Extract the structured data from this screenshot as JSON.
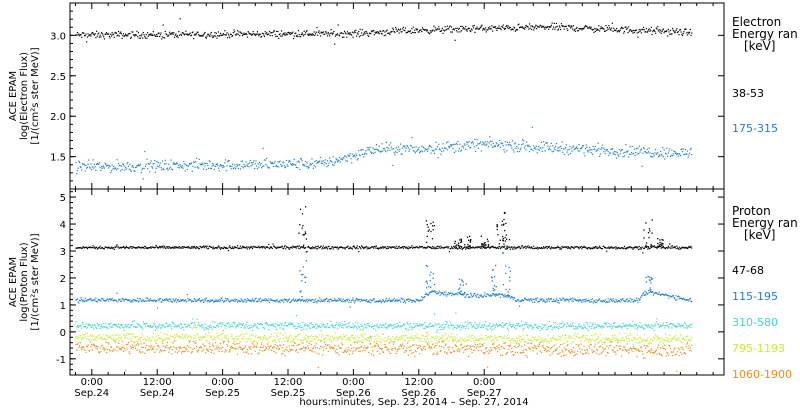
{
  "chart_data": [
    {
      "type": "scatter",
      "ylabel_lines": [
        "ACE EPAM",
        "log(Electron Flux)",
        "[1/(cm²s ster MeV)]"
      ],
      "ylim": [
        1.1,
        3.4
      ],
      "yticks": [
        "1.5",
        "2.0",
        "2.5",
        "3.0"
      ],
      "ytick_values": [
        1.5,
        2.0,
        2.5,
        3.0
      ],
      "legend_title": [
        "Electron",
        "Energy ran",
        "[keV]"
      ],
      "series": [
        {
          "name": "38-53",
          "color": "#000000",
          "levels": [
            [
              0,
              3.01
            ],
            [
              24,
              3.02
            ],
            [
              48,
              3.03
            ],
            [
              60,
              3.07
            ],
            [
              72,
              3.09
            ],
            [
              84,
              3.11
            ],
            [
              96,
              3.08
            ],
            [
              110,
              3.04
            ]
          ],
          "noise": 0.03,
          "step": 0.13,
          "end": 110
        },
        {
          "name": "175-315",
          "color": "#1f7ed0",
          "levels": [
            [
              0,
              1.38
            ],
            [
              20,
              1.4
            ],
            [
              42,
              1.42
            ],
            [
              48,
              1.52
            ],
            [
              52,
              1.6
            ],
            [
              60,
              1.6
            ],
            [
              72,
              1.66
            ],
            [
              84,
              1.62
            ],
            [
              96,
              1.58
            ],
            [
              110,
              1.55
            ]
          ],
          "noise": 0.05,
          "step": 0.13,
          "end": 110
        }
      ]
    },
    {
      "type": "scatter",
      "ylabel_lines": [
        "ACE EPAM",
        "log(Proton Flux)",
        "[1/(cm²s ster MeV)]"
      ],
      "ylim": [
        -1.6,
        5.3
      ],
      "yticks": [
        "-1",
        "0",
        "1",
        "2",
        "3",
        "4",
        "5"
      ],
      "ytick_values": [
        -1,
        0,
        1,
        2,
        3,
        4,
        5
      ],
      "legend_title": [
        "Proton",
        "Energy ran",
        "[keV]"
      ],
      "series": [
        {
          "name": "47-68",
          "color": "#000000",
          "levels": [
            [
              0,
              3.15
            ],
            [
              110,
              3.15
            ]
          ],
          "noise": 0.04,
          "step": 0.13,
          "end": 110,
          "bursts": [
            [
              38.5,
              4.8
            ],
            [
              62,
              4.2
            ],
            [
              67,
              3.5
            ],
            [
              69,
              3.6
            ],
            [
              72,
              3.6
            ],
            [
              75,
              4.4
            ],
            [
              76,
              4.5
            ],
            [
              102,
              4.2
            ],
            [
              104,
              3.5
            ]
          ]
        },
        {
          "name": "115-195",
          "color": "#1f7ed0",
          "levels": [
            [
              0,
              1.2
            ],
            [
              60,
              1.18
            ],
            [
              62,
              1.5
            ],
            [
              70,
              1.35
            ],
            [
              75,
              1.4
            ],
            [
              78,
              1.2
            ],
            [
              100,
              1.18
            ],
            [
              102,
              1.5
            ],
            [
              110,
              1.2
            ]
          ],
          "noise": 0.06,
          "step": 0.13,
          "end": 110,
          "bursts": [
            [
              38.5,
              2.7
            ],
            [
              62,
              2.5
            ],
            [
              68,
              2.0
            ],
            [
              74,
              2.5
            ],
            [
              76,
              3.0
            ],
            [
              102,
              2.1
            ]
          ]
        },
        {
          "name": "310-580",
          "color": "#3fd8d0",
          "levels": [
            [
              0,
              0.25
            ],
            [
              110,
              0.25
            ]
          ],
          "noise": 0.1,
          "step": 0.13,
          "end": 110
        },
        {
          "name": "795-1193",
          "color": "#c8f02a",
          "levels": [
            [
              0,
              -0.2
            ],
            [
              110,
              -0.25
            ]
          ],
          "noise": 0.12,
          "step": 0.13,
          "end": 110
        },
        {
          "name": "1060-1900",
          "color": "#f08a18",
          "levels": [
            [
              0,
              -0.55
            ],
            [
              110,
              -0.65
            ]
          ],
          "noise": 0.18,
          "step": 0.13,
          "end": 110
        }
      ]
    }
  ],
  "xaxis": {
    "range_hours": [
      -4,
      116
    ],
    "ticks": [
      {
        "hour": 0,
        "time": "0:00",
        "date": "Sep.24"
      },
      {
        "hour": 12,
        "time": "12:00",
        "date": "Sep.24"
      },
      {
        "hour": 24,
        "time": "0:00",
        "date": "Sep.25"
      },
      {
        "hour": 36,
        "time": "12:00",
        "date": "Sep.25"
      },
      {
        "hour": 48,
        "time": "0:00",
        "date": "Sep.26"
      },
      {
        "hour": 60,
        "time": "12:00",
        "date": "Sep.26"
      },
      {
        "hour": 72,
        "time": "0:00",
        "date": "Sep.27"
      }
    ],
    "label": "hours:minutes, Sep. 23, 2014 – Sep. 27, 2014"
  }
}
